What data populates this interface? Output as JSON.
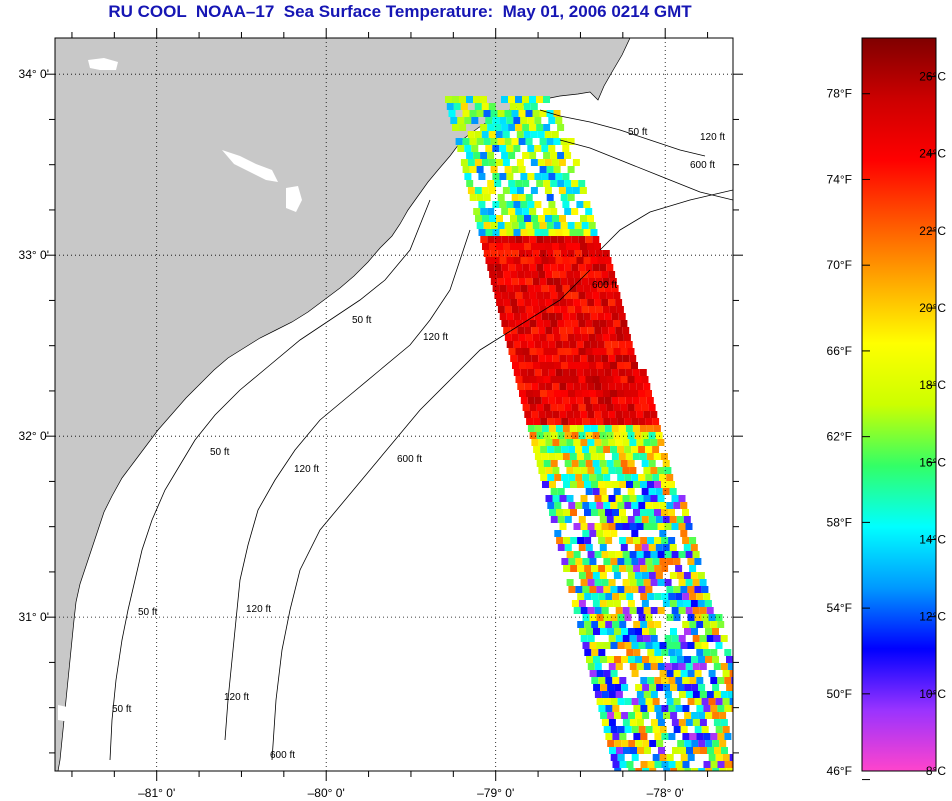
{
  "title": {
    "org": "RU COOL",
    "satellite": "NOAA–17",
    "product": "Sea Surface Temperature:",
    "datetime": "May 01, 2006 0214 GMT"
  },
  "map": {
    "lon_range": [
      -81.6,
      -77.6
    ],
    "lat_range": [
      30.15,
      34.2
    ],
    "lon_ticks": [
      {
        "value": -81,
        "label": "–81° 0'"
      },
      {
        "value": -80,
        "label": "–80° 0'"
      },
      {
        "value": -79,
        "label": "–79° 0'"
      },
      {
        "value": -78,
        "label": "–78° 0'"
      }
    ],
    "lat_ticks": [
      {
        "value": 34,
        "label": "34° 0'"
      },
      {
        "value": 33,
        "label": "33° 0'"
      },
      {
        "value": 32,
        "label": "32° 0'"
      },
      {
        "value": 31,
        "label": "31° 0'"
      }
    ],
    "contour_labels": [
      "50 ft",
      "120 ft",
      "600 ft",
      "50 ft",
      "120 ft",
      "600 ft",
      "50 ft",
      "120 ft",
      "600 ft",
      "50 ft",
      "120 ft",
      "600 ft",
      "50 ft",
      "120 ft"
    ],
    "colors": {
      "land": "#c8c8c8",
      "ocean": "#ffffff",
      "grid": "#000000"
    }
  },
  "colorbar": {
    "fahrenheit_labels": [
      "78°F",
      "74°F",
      "70°F",
      "66°F",
      "62°F",
      "58°F",
      "54°F",
      "50°F",
      "46°F"
    ],
    "celsius_labels": [
      "26°C",
      "24°C",
      "22°C",
      "20°C",
      "18°C",
      "16°C",
      "14°C",
      "12°C",
      "10°C",
      "8°C"
    ],
    "range_c": [
      8,
      27
    ],
    "stops": [
      "#ff44cc",
      "#9933ff",
      "#0000ff",
      "#0099ff",
      "#00ffff",
      "#33ff66",
      "#ccff00",
      "#ffff00",
      "#ffaa00",
      "#ff5500",
      "#ff0000",
      "#cc0000",
      "#800000"
    ]
  }
}
